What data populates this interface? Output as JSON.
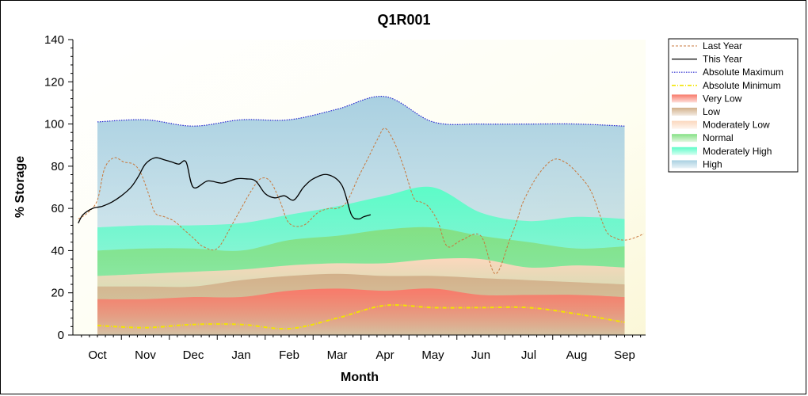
{
  "chart_data": {
    "type": "area",
    "title": "Q1R001",
    "xlabel": "Month",
    "ylabel": "% Storage",
    "categories": [
      "Oct",
      "Nov",
      "Dec",
      "Jan",
      "Feb",
      "Mar",
      "Apr",
      "May",
      "Jun",
      "Jul",
      "Aug",
      "Sep"
    ],
    "ylim": [
      0,
      140
    ],
    "yticks": [
      0,
      20,
      40,
      60,
      80,
      100,
      120,
      140
    ],
    "grid": false,
    "legend_position": "right",
    "bands": [
      {
        "name": "Very Low",
        "color": "#f87a6a",
        "upper": [
          17,
          17,
          18,
          18,
          21,
          22,
          21,
          22,
          19,
          19,
          19,
          18
        ]
      },
      {
        "name": "Low",
        "color": "#d2b08a",
        "upper": [
          23,
          23,
          23,
          26,
          28,
          29,
          28,
          28,
          27,
          26,
          25,
          24
        ]
      },
      {
        "name": "Moderately Low",
        "color": "#fbd7bd",
        "upper": [
          28,
          29,
          30,
          31,
          33,
          34,
          34,
          36,
          36,
          32,
          33,
          32
        ]
      },
      {
        "name": "Normal",
        "color": "#84e084",
        "upper": [
          40,
          41,
          41,
          40,
          45,
          47,
          50,
          51,
          47,
          44,
          41,
          42
        ]
      },
      {
        "name": "Moderately High",
        "color": "#5dfcc8",
        "upper": [
          51,
          52,
          52,
          53,
          57,
          61,
          66,
          70,
          58,
          54,
          56,
          55
        ]
      },
      {
        "name": "High",
        "color": "#a9d0e1",
        "upper": [
          101,
          102,
          99,
          102,
          102,
          107,
          113,
          101,
          100,
          100,
          100,
          99
        ]
      }
    ],
    "series": [
      {
        "name": "Last Year",
        "color": "#c8783c",
        "style": "dashed",
        "x": [
          -0.4,
          -0.2,
          0,
          0.15,
          0.35,
          0.55,
          0.75,
          0.9,
          1.05,
          1.2,
          1.4,
          1.6,
          1.8,
          2.0,
          2.2,
          2.5,
          2.8,
          3.0,
          3.2,
          3.4,
          3.6,
          3.8,
          4.0,
          4.3,
          4.6,
          4.85,
          5.0,
          5.2,
          5.45,
          5.65,
          5.85,
          6.0,
          6.2,
          6.4,
          6.6,
          6.75,
          6.9,
          7.1,
          7.3,
          7.6,
          8.0,
          8.3,
          8.6,
          8.75,
          8.9,
          9.2,
          9.5,
          9.75,
          10.0,
          10.3,
          10.6,
          10.8,
          11.0,
          11.2,
          11.4
        ],
        "y": [
          55,
          58,
          64,
          79,
          84,
          82,
          81,
          77,
          68,
          58,
          56,
          54,
          50,
          46,
          42,
          41,
          52,
          60,
          68,
          74,
          73,
          64,
          53,
          52,
          58,
          60,
          60,
          63,
          75,
          84,
          93,
          98,
          91,
          79,
          65,
          63,
          61,
          54,
          42,
          45,
          47,
          29,
          45,
          54,
          64,
          76,
          83,
          82,
          77,
          68,
          50,
          46,
          45,
          46,
          48
        ]
      },
      {
        "name": "This Year",
        "color": "#000000",
        "style": "solid",
        "x": [
          -0.4,
          -0.3,
          -0.1,
          0.1,
          0.3,
          0.5,
          0.7,
          0.85,
          1.0,
          1.2,
          1.4,
          1.55,
          1.7,
          1.85,
          2.0,
          2.3,
          2.6,
          2.9,
          3.1,
          3.3,
          3.5,
          3.7,
          3.9,
          4.1,
          4.3,
          4.5,
          4.8,
          5.1,
          5.3,
          5.45,
          5.55,
          5.7
        ],
        "y": [
          53,
          57,
          60,
          61,
          63,
          66,
          70,
          75,
          81,
          84,
          83,
          82,
          81,
          82,
          70,
          73,
          72,
          74,
          74,
          73,
          67,
          65,
          66,
          64,
          70,
          74,
          76,
          71,
          57,
          55,
          56,
          57
        ]
      },
      {
        "name": "Absolute Maximum",
        "color": "#2828d0",
        "style": "dotted",
        "x": [
          0,
          1,
          2,
          3,
          4,
          5,
          6,
          7,
          8,
          9,
          10,
          11
        ],
        "y": [
          101,
          102,
          99,
          102,
          102,
          107,
          113,
          101,
          100,
          100,
          100,
          99
        ]
      },
      {
        "name": "Absolute Minimum",
        "color": "#f2e400",
        "style": "dashdot",
        "x": [
          0,
          1,
          2,
          3,
          4,
          5,
          6,
          7,
          8,
          9,
          10,
          11
        ],
        "y": [
          4.5,
          3.5,
          5,
          5,
          3,
          8,
          14,
          13,
          13,
          13,
          10,
          6
        ]
      }
    ],
    "legend": [
      "Last Year",
      "This Year",
      "Absolute Maximum",
      "Absolute Minimum",
      "Very Low",
      "Low",
      "Moderately Low",
      "Normal",
      "Moderately High",
      "High"
    ]
  }
}
